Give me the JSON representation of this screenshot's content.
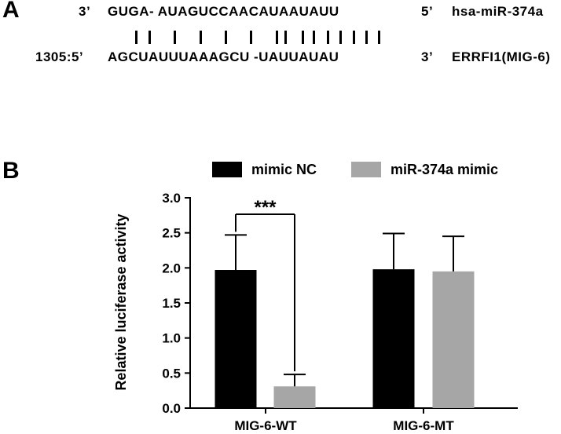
{
  "panel_a": {
    "label": "A",
    "mirna": {
      "end3": "3’",
      "sequence": "GUGA- AUAGUCCAACAUAAUAUU",
      "end5": "5’",
      "name": "hsa-miR-374a"
    },
    "target": {
      "start": "1305:5’",
      "sequence": "AGCUAUUUAAAGCU -UAUUAUAU",
      "end3": "3’",
      "name": "ERRFI1(MIG-6)"
    },
    "pairing_marks": 15
  },
  "panel_b": {
    "label": "B"
  },
  "chart_data": {
    "type": "bar",
    "categories": [
      "MIG-6-WT",
      "MIG-6-MT"
    ],
    "series": [
      {
        "name": "mimic NC",
        "color": "#000000",
        "values": [
          1.97,
          1.98
        ],
        "errors": [
          0.5,
          0.51
        ]
      },
      {
        "name": "miR-374a mimic",
        "color": "#a6a6a6",
        "values": [
          0.31,
          1.95
        ],
        "errors": [
          0.17,
          0.5
        ]
      }
    ],
    "ylabel": "Relative luciferase activity",
    "ylim": [
      0,
      3.0
    ],
    "yticks": [
      0.0,
      0.5,
      1.0,
      1.5,
      2.0,
      2.5,
      3.0
    ],
    "ytick_labels": [
      "0.0",
      "0.5",
      "1.0",
      "1.5",
      "2.0",
      "2.5",
      "3.0"
    ],
    "legend_position": "top",
    "annotation": {
      "text": "***",
      "category": "MIG-6-WT"
    }
  }
}
